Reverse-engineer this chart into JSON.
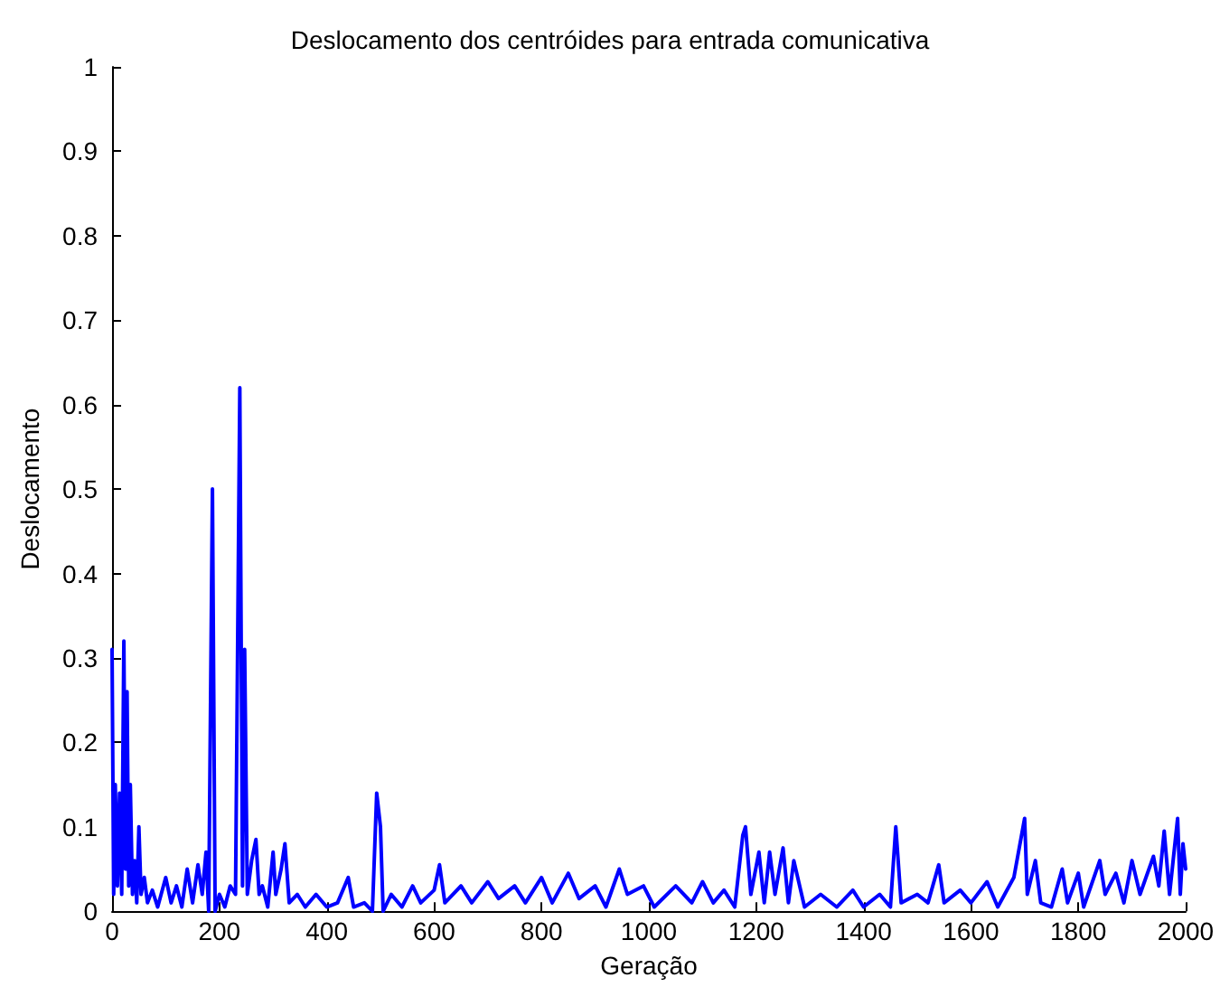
{
  "chart_data": {
    "type": "line",
    "title": "Deslocamento dos centróides para entrada comunicativa",
    "xlabel": "Geração",
    "ylabel": "Deslocamento",
    "xlim": [
      0,
      2000
    ],
    "xticks": [
      0,
      200,
      400,
      600,
      800,
      1000,
      1200,
      1400,
      1600,
      1800,
      2000
    ],
    "ylim": [
      0,
      1
    ],
    "yticks": [
      0,
      0.1,
      0.2,
      0.3,
      0.4,
      0.5,
      0.6,
      0.7,
      0.8,
      0.9,
      1
    ],
    "grid": false,
    "marker": "none",
    "line_style": "solid",
    "series": [
      {
        "color": "#0000ff",
        "x": [
          0,
          3,
          6,
          10,
          14,
          18,
          22,
          25,
          28,
          31,
          34,
          38,
          42,
          46,
          50,
          54,
          60,
          66,
          75,
          85,
          100,
          110,
          120,
          130,
          140,
          150,
          160,
          168,
          175,
          180,
          187,
          192,
          200,
          210,
          220,
          230,
          238,
          243,
          247,
          252,
          260,
          268,
          274,
          280,
          290,
          300,
          305,
          315,
          322,
          330,
          345,
          360,
          380,
          400,
          420,
          440,
          450,
          470,
          485,
          493,
          500,
          505,
          520,
          540,
          560,
          575,
          600,
          610,
          620,
          650,
          670,
          700,
          720,
          750,
          770,
          800,
          820,
          850,
          870,
          900,
          920,
          945,
          960,
          990,
          1010,
          1050,
          1080,
          1100,
          1120,
          1140,
          1160,
          1175,
          1180,
          1190,
          1205,
          1215,
          1225,
          1235,
          1250,
          1260,
          1270,
          1290,
          1320,
          1350,
          1380,
          1400,
          1430,
          1450,
          1460,
          1470,
          1500,
          1520,
          1540,
          1550,
          1580,
          1600,
          1630,
          1650,
          1680,
          1700,
          1705,
          1720,
          1730,
          1750,
          1770,
          1780,
          1800,
          1810,
          1840,
          1850,
          1870,
          1885,
          1900,
          1915,
          1940,
          1950,
          1960,
          1970,
          1985,
          1990,
          1995,
          2000
        ],
        "values": [
          0.31,
          0.02,
          0.15,
          0.03,
          0.14,
          0.02,
          0.32,
          0.05,
          0.26,
          0.03,
          0.15,
          0.02,
          0.06,
          0.01,
          0.1,
          0.02,
          0.04,
          0.01,
          0.025,
          0.005,
          0.04,
          0.01,
          0.03,
          0.005,
          0.05,
          0.01,
          0.055,
          0.02,
          0.07,
          0,
          0.5,
          0,
          0.02,
          0.005,
          0.03,
          0.02,
          0.62,
          0.03,
          0.31,
          0.02,
          0.06,
          0.085,
          0.02,
          0.03,
          0.005,
          0.07,
          0.02,
          0.05,
          0.08,
          0.01,
          0.02,
          0.005,
          0.02,
          0.005,
          0.01,
          0.04,
          0.005,
          0.01,
          0,
          0.14,
          0.1,
          0,
          0.02,
          0.005,
          0.03,
          0.01,
          0.025,
          0.055,
          0.01,
          0.03,
          0.01,
          0.035,
          0.015,
          0.03,
          0.01,
          0.04,
          0.01,
          0.045,
          0.015,
          0.03,
          0.005,
          0.05,
          0.02,
          0.03,
          0.005,
          0.03,
          0.01,
          0.035,
          0.01,
          0.025,
          0.005,
          0.09,
          0.1,
          0.02,
          0.07,
          0.01,
          0.07,
          0.02,
          0.075,
          0.01,
          0.06,
          0.005,
          0.02,
          0.005,
          0.025,
          0.005,
          0.02,
          0.005,
          0.1,
          0.01,
          0.02,
          0.01,
          0.055,
          0.01,
          0.025,
          0.01,
          0.035,
          0.005,
          0.04,
          0.11,
          0.02,
          0.06,
          0.01,
          0.005,
          0.05,
          0.01,
          0.045,
          0.005,
          0.06,
          0.02,
          0.045,
          0.01,
          0.06,
          0.02,
          0.065,
          0.03,
          0.095,
          0.02,
          0.11,
          0.02,
          0.08,
          0.05
        ]
      }
    ]
  }
}
